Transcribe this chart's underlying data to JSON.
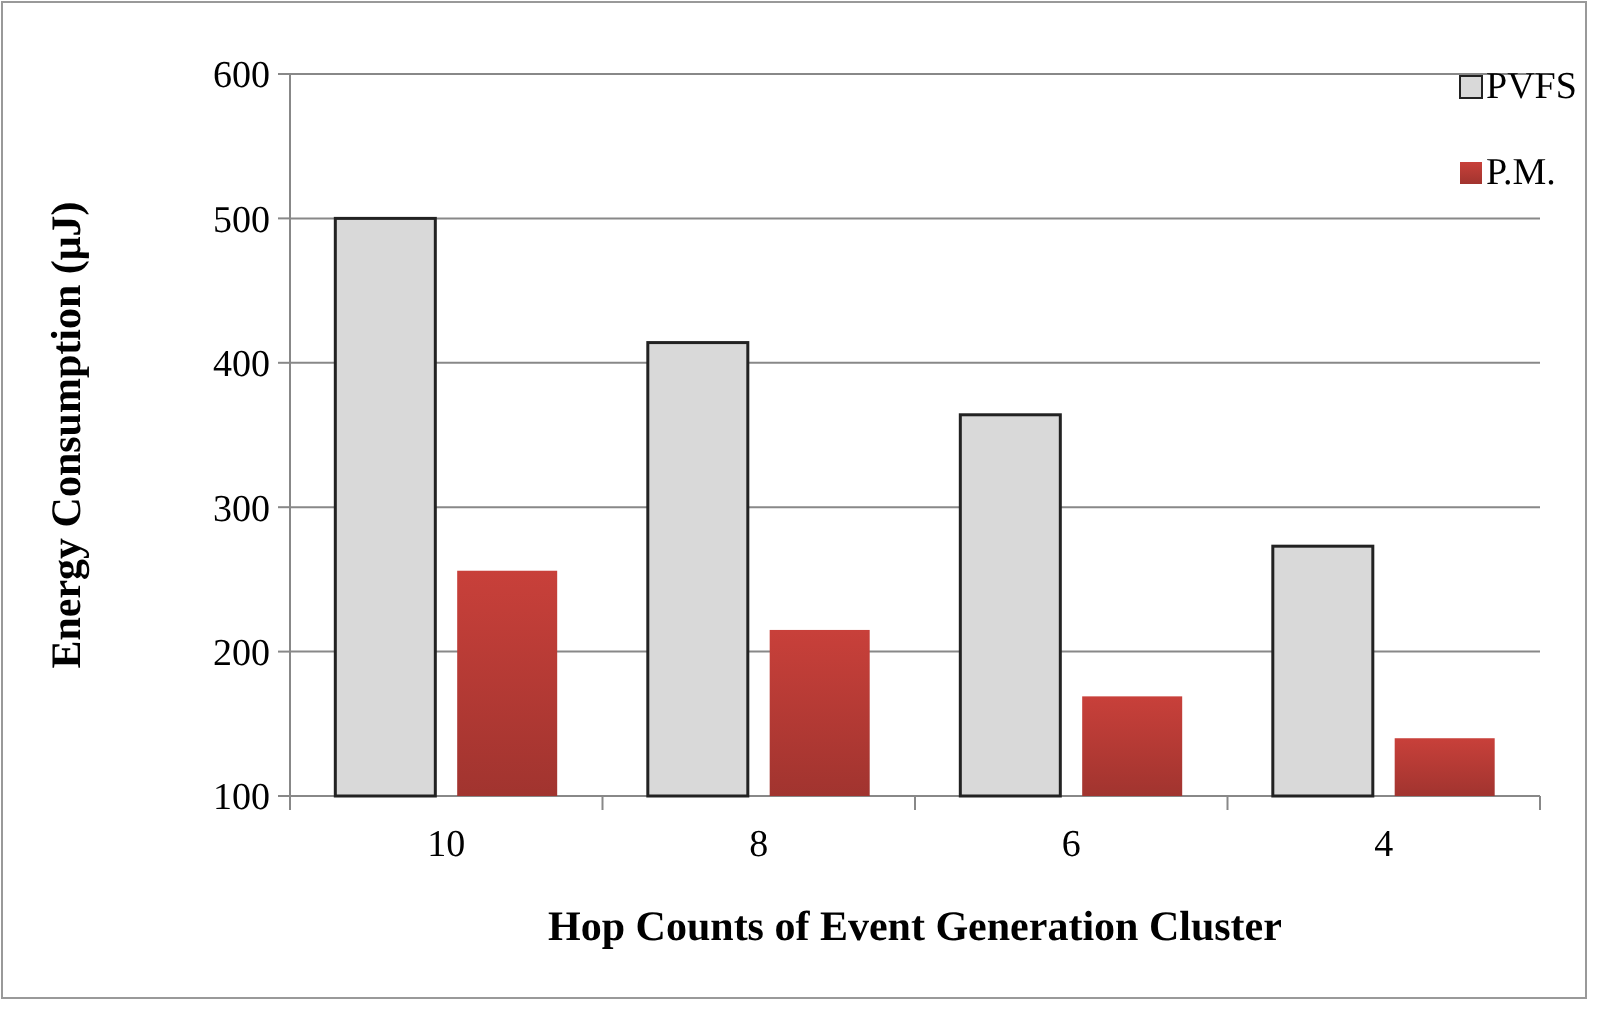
{
  "chart_data": {
    "type": "bar",
    "xlabel": "Hop Counts of Event Generation Cluster",
    "ylabel": "Energy Consumption (μJ)",
    "categories": [
      "10",
      "8",
      "6",
      "4"
    ],
    "series": [
      {
        "name": "PVFS",
        "color": "#d9d9d9",
        "values": [
          500,
          414,
          364,
          273
        ]
      },
      {
        "name": "P.M.",
        "color": "#c8403a",
        "values": [
          256,
          215,
          169,
          140
        ]
      }
    ],
    "ylim": [
      100,
      600
    ],
    "yticks": [
      100,
      200,
      300,
      400,
      500,
      600
    ],
    "grid": "y",
    "legend": "top right"
  }
}
